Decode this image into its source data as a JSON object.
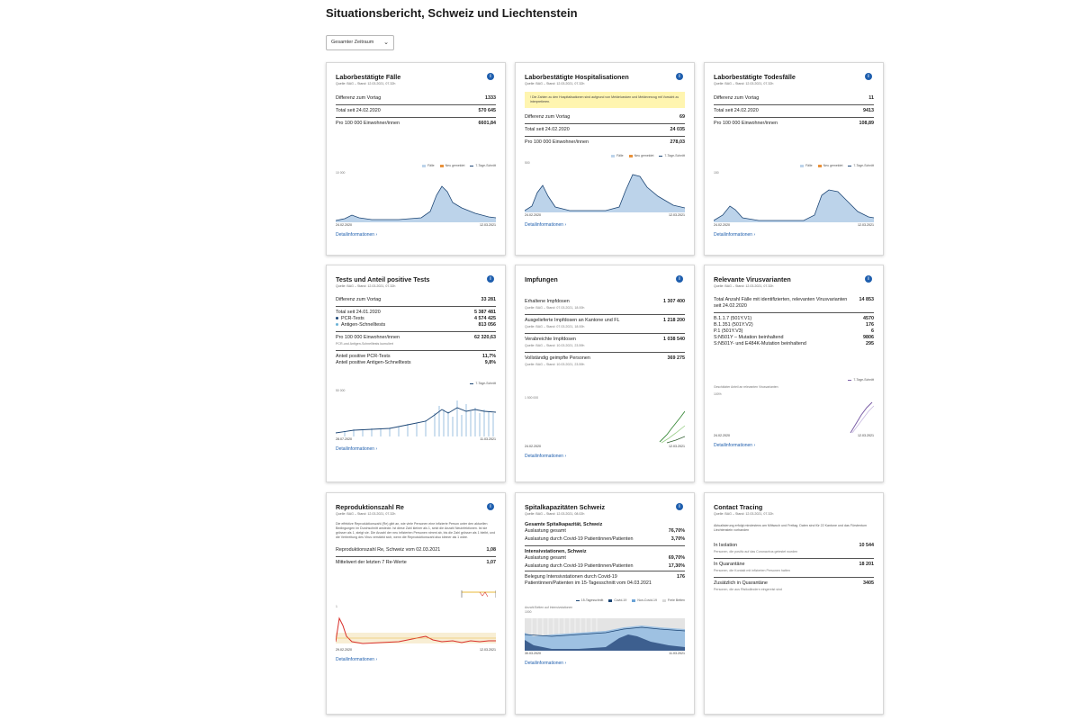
{
  "page_title": "Situationsbericht, Schweiz und Liechtenstein",
  "period_select": "Gesamter Zeitraum",
  "detail_link": "Detailinformationen",
  "cards": {
    "faelle": {
      "title": "Laborbestätigte Fälle",
      "meta": "Quelle: BAG – Stand: 12.03.2021, 07.32h",
      "rows": [
        {
          "label": "Differenz zum Vortag",
          "value": "1333"
        },
        {
          "label": "Total seit 24.02.2020",
          "value": "570 645"
        },
        {
          "label": "Pro 100 000 Einwohner/innen",
          "value": "6601,84"
        }
      ],
      "legend": [
        "Fälle",
        "Neu gemeldet",
        "7-Tage-Schnitt"
      ],
      "ymax_label": "10 000",
      "x_start": "24.02.2020",
      "x_end": "12.03.2021"
    },
    "hosp": {
      "title": "Laborbestätigte Hospitalisationen",
      "meta": "Quelle: BAG – Stand: 12.03.2021, 07.32h",
      "notice": "Die Zahlen zu den Hospitalisationen sind aufgrund von Meldeluecken und Meldeverzug mit Vorsicht zu interpretieren.",
      "rows": [
        {
          "label": "Differenz zum Vortag",
          "value": "69"
        },
        {
          "label": "Total seit 24.02.2020",
          "value": "24 035"
        },
        {
          "label": "Pro 100 000 Einwohner/innen",
          "value": "278,03"
        }
      ],
      "legend": [
        "Fälle",
        "Neu gemeldet",
        "7-Tage-Schnitt"
      ],
      "ymax_label": "500",
      "x_start": "24.02.2020",
      "x_end": "12.03.2021"
    },
    "tod": {
      "title": "Laborbestätigte Todesfälle",
      "meta": "Quelle: BAG – Stand: 12.03.2021, 07.32h",
      "rows": [
        {
          "label": "Differenz zum Vortag",
          "value": "11"
        },
        {
          "label": "Total seit 24.02.2020",
          "value": "9413"
        },
        {
          "label": "Pro 100 000 Einwohner/innen",
          "value": "108,89"
        }
      ],
      "legend": [
        "Fälle",
        "Neu gemeldet",
        "7-Tage-Schnitt"
      ],
      "ymax_label": "150",
      "x_start": "24.02.2020",
      "x_end": "12.03.2021"
    },
    "tests": {
      "title": "Tests und Anteil positive Tests",
      "meta": "Quelle: BAG – Stand: 12.03.2021, 07.32h",
      "diff_label": "Differenz zum Vortag",
      "diff_value": "33 281",
      "total_label": "Total seit 24.01.2020",
      "total_value": "5 387 481",
      "pcr_label": "PCR-Tests",
      "pcr_value": "4 574 425",
      "antigen_label": "Antigen-Schnelltests",
      "antigen_value": "813 056",
      "per100k_label": "Pro 100 000 Einwohner/innen",
      "per100k_sub": "PCR-und Antigen-Schnelltests kumuliert",
      "per100k_value": "62 320,63",
      "pos_pcr_label": "Anteil positive PCR-Tests",
      "pos_pcr_value": "11,7%",
      "pos_ag_label": "Anteil positive Antigen-Schnelltests",
      "pos_ag_value": "9,8%",
      "legend": "7-Tage-Schnitt",
      "ymax_label": "50 000",
      "x_start": "28.07.2020",
      "x_end": "11.03.2021"
    },
    "impf": {
      "title": "Impfungen",
      "r1_label": "Erhaltene Impfdosen",
      "r1_sub": "Quelle: BAG – Stand: 07.03.2021, 18.00h",
      "r1_value": "1 307 400",
      "r2_label": "Ausgelieferte Impfdosen an Kantone und FL",
      "r2_sub": "Quelle: BAG – Stand: 07.03.2021, 18.00h",
      "r2_value": "1 218 200",
      "r3_label": "Verabreichte Impfdosen",
      "r3_sub": "Quelle: BAG – Stand: 10.03.2021, 23.59h",
      "r3_value": "1 038 540",
      "r4_label": "Vollständig geimpfte Personen",
      "r4_sub": "Quelle: BAG – Stand: 10.03.2021, 23.59h",
      "r4_value": "369 275",
      "ymax_label": "1 500 000",
      "x_start": "24.02.2020",
      "x_end": "12.03.2021"
    },
    "varianten": {
      "title": "Relevante Virusvarianten",
      "meta": "Quelle: BAG – Stand: 12.03.2021, 07.32h",
      "total_label": "Total Anzahl Fälle mit identifizierten, relevanten Virusvarianten seit 24.02.2020",
      "total_value": "14 853",
      "variants": [
        {
          "label": "B.1.1.7 (501Y.V1)",
          "value": "4570"
        },
        {
          "label": "B.1.351 (501Y.V2)",
          "value": "176"
        },
        {
          "label": "P.1 (501Y.V3)",
          "value": "6"
        },
        {
          "label": "S:N501Y – Mutation beinhaltend",
          "value": "9806"
        },
        {
          "label": "S:N501Y- und E484K-Mutation beinhaltend",
          "value": "295"
        }
      ],
      "legend": "7-Tage-Schnitt",
      "chart_label": "Geschätzter Anteil an relevanten Virusvarianten",
      "ymax_label": "100%",
      "x_start": "24.02.2020",
      "x_end": "12.03.2021"
    },
    "repro": {
      "title": "Reproduktionszahl Re",
      "meta": "Quelle: BAG – Stand: 12.03.2021, 07.32h",
      "desc": "Die effektive Reproduktionszahl (Re) gibt an, wie viele Personen eine infizierte Person unter den aktuellen Bedingungen im Durchschnitt ansteckt. Ist diese Zahl kleiner als 1, sinkt die Anzahl Neuinfektionen. Ist sie grösser als 1, steigt sie. Die Anzahl der neu infizierten Personen nimmt ab, bis die Zahl grösser als 1 bleibt, und die Verbreitung des Virus verstärkt sich, wenn die Reproduktionszahl also kleiner als 1 wäre.",
      "r1_label": "Reproduktionszahl Re, Schweiz vom 02.03.2021",
      "r1_value": "1,08",
      "r2_label": "Mittelwert der letzten 7 Re-Werte",
      "r2_value": "1,07",
      "y1_label": "1",
      "x_start": "29.02.2020",
      "x_end": "12.03.2021"
    },
    "spital": {
      "title": "Spitalkapazitäten Schweiz",
      "meta": "Quelle: BAG – Stand: 12.03.2021, 08.02h",
      "sec1": "Gesamte Spitalkapazität, Schweiz",
      "r1_label": "Auslastung gesamt",
      "r1_value": "76,70%",
      "r2_label": "Auslastung durch Covid-19 Patientinnen/Patienten",
      "r2_value": "3,70%",
      "sec2": "Intensivstationen, Schweiz",
      "r3_label": "Auslastung gesamt",
      "r3_value": "69,70%",
      "r4_label": "Auslastung durch Covid-19 Patientinnen/Patienten",
      "r4_value": "17,30%",
      "r5_label": "Belegung Intensivstationen durch Covid-19 Patientinnen/Patienten im 15-Tagesschnitt vom 04.03.2021",
      "r5_value": "176",
      "legend": [
        "15-Tagesschnitt",
        "Covid-19",
        "Non-Covid-19",
        "Freie Betten"
      ],
      "chart_label": "Anzahl Betten auf Intensivstationen",
      "ymax_label": "1000",
      "x_start": "30.03.2020",
      "x_end": "11.03.2021"
    },
    "contact": {
      "title": "Contact Tracing",
      "meta": "Quelle: BAG – Stand: 12.03.2021, 07.32h",
      "desc": "Aktualisierung erfolgt mindestens am Mittwoch und Freitag. Daten sind für 22 Kantone und das Fürstentum Liechtenstein vorhanden",
      "items": [
        {
          "label": "In Isolation",
          "sub": "Personen, die positiv auf das Coronavirus getestet wurden",
          "value": "10 544"
        },
        {
          "label": "In Quarantäne",
          "sub": "Personen, die Kontakt mit infizierten Personen hatten",
          "value": "18 201"
        },
        {
          "label": "Zusätzlich in Quarantäne",
          "sub": "Personen, die aus Risikoländern eingereist sind",
          "value": "3405"
        }
      ]
    }
  },
  "colors": {
    "accent": "#1f5fae",
    "area": "#bcd3ea",
    "line": "#1d4675",
    "orange": "#e8913a",
    "green": "#3a8a3a",
    "purple": "#7b5ea7",
    "red": "#d9302b"
  }
}
